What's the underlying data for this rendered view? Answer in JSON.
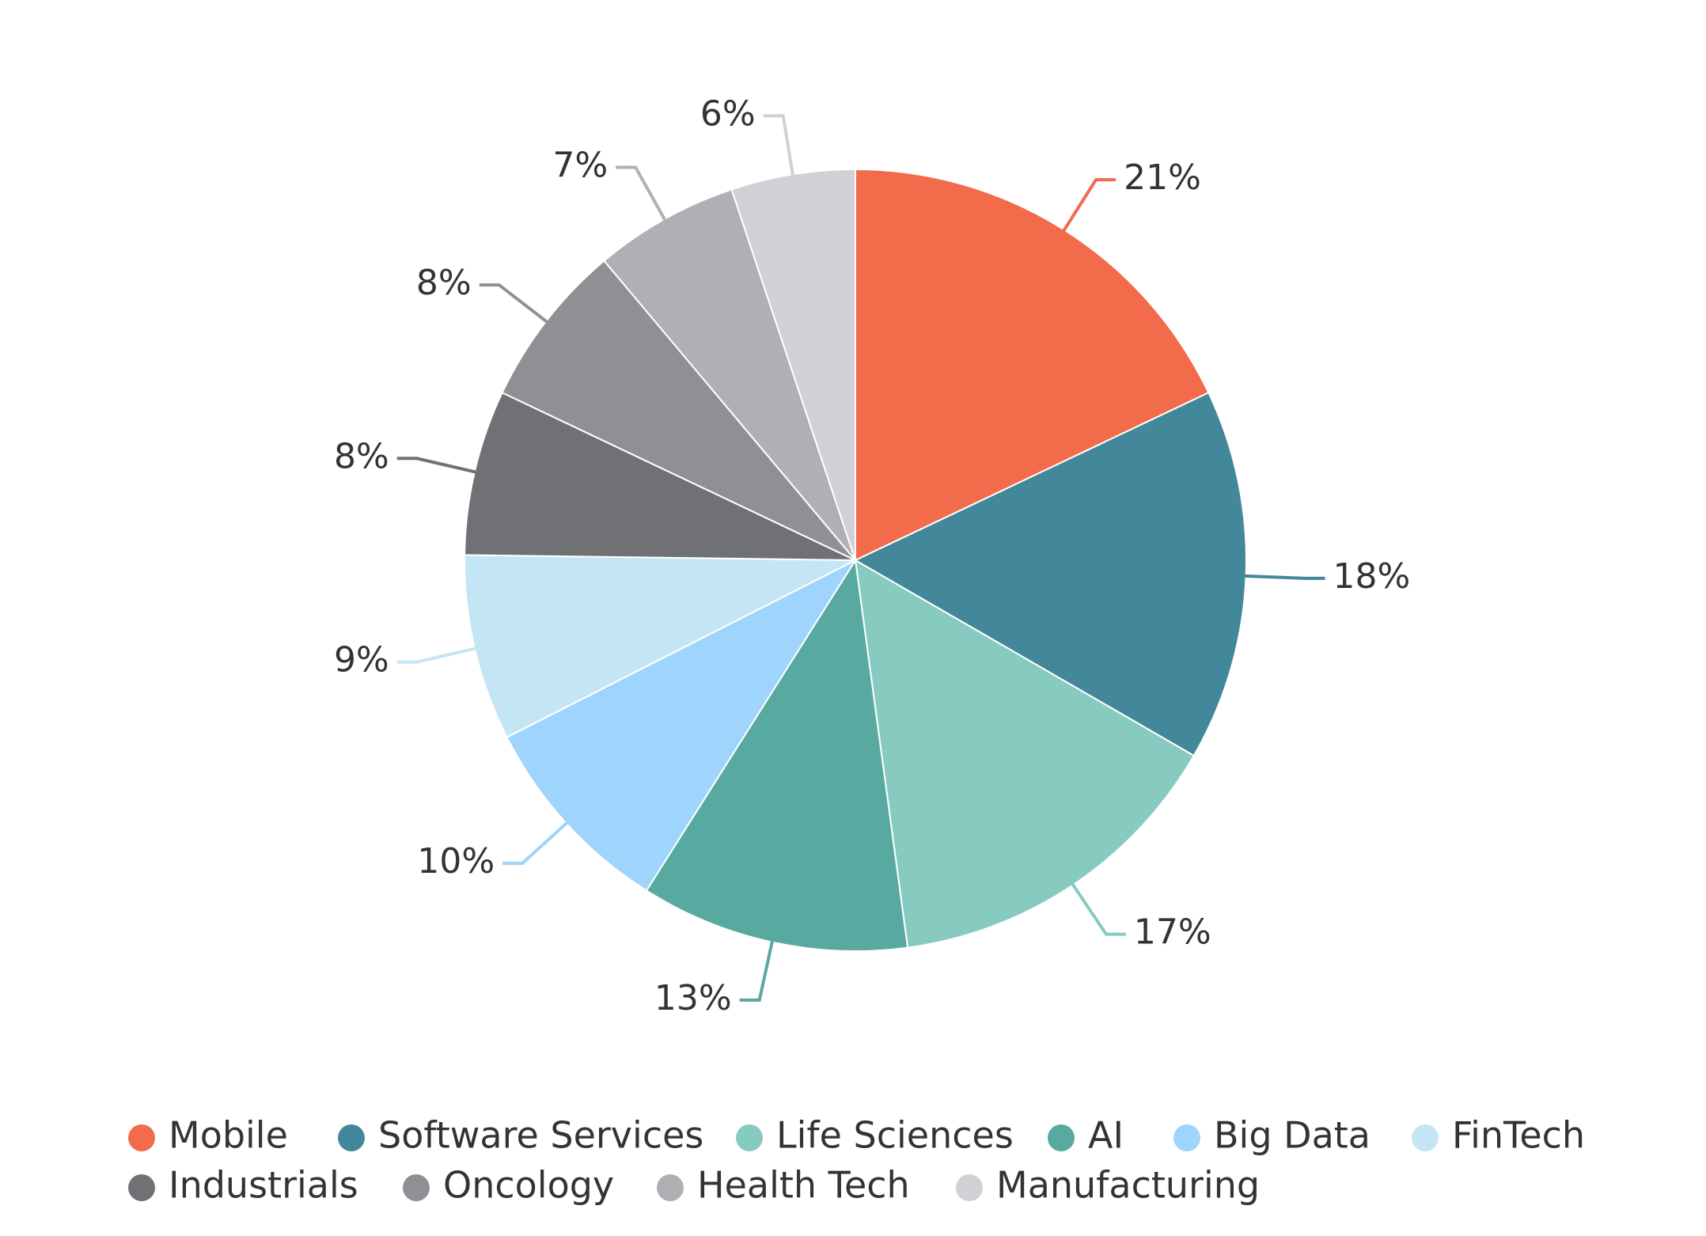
{
  "chart_data": {
    "type": "pie",
    "categories": [
      "Mobile",
      "Software Services",
      "Life Sciences",
      "AI",
      "Big Data",
      "FinTech",
      "Industrials",
      "Oncology",
      "Health Tech",
      "Manufacturing"
    ],
    "values": [
      21,
      18,
      17,
      13,
      10,
      9,
      8,
      8,
      7,
      6
    ],
    "value_labels": [
      "21%",
      "18%",
      "17%",
      "13%",
      "10%",
      "9%",
      "8%",
      "8%",
      "7%",
      "6%"
    ],
    "colors": [
      "#f26b4a",
      "#42889a",
      "#87cac0",
      "#58a9a0",
      "#9fd4fc",
      "#c4e6f4",
      "#707175",
      "#8f9094",
      "#afb0b3",
      "#d0d1d5"
    ],
    "legend": "bottom"
  }
}
